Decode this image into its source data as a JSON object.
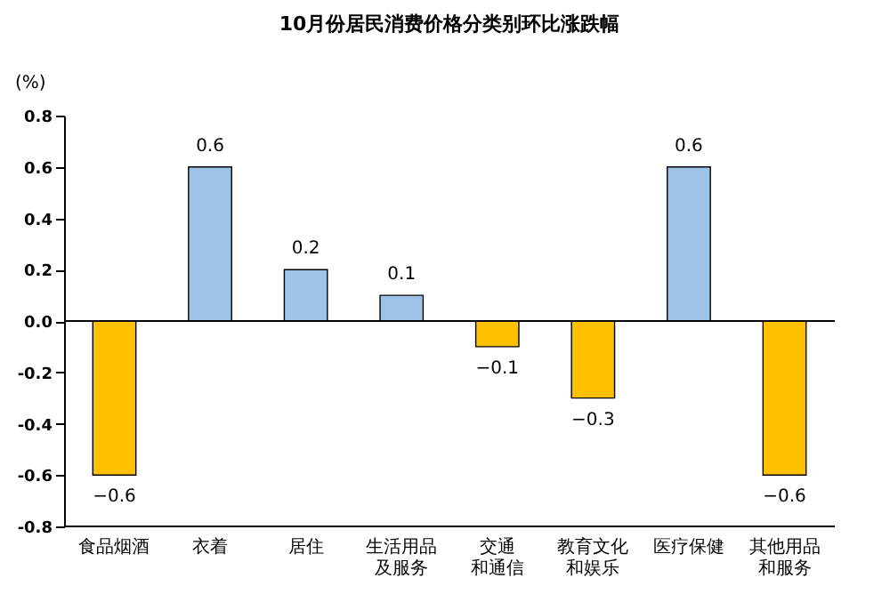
{
  "chart_data": {
    "type": "bar",
    "title": "10月份居民消费价格分类别环比涨跌幅",
    "ylabel": "(%)",
    "categories": [
      "食品烟酒",
      "衣着",
      "居住",
      "生活用品及服务",
      "交通和通信",
      "教育文化和娱乐",
      "医疗保健",
      "其他用品和服务"
    ],
    "values": [
      -0.6,
      0.6,
      0.2,
      0.1,
      -0.1,
      -0.3,
      0.6,
      -0.6
    ],
    "colors": [
      "#ffc000",
      "#9dc3e6",
      "#9dc3e6",
      "#9dc3e6",
      "#ffc000",
      "#ffc000",
      "#9dc3e6",
      "#ffc000"
    ],
    "ylim": [
      -0.8,
      0.8
    ],
    "yticks": [
      -0.8,
      -0.6,
      -0.4,
      -0.2,
      {
        "value": 0,
        "label": "0.0"
      },
      0.2,
      0.4,
      0.6,
      0.8
    ],
    "ref_lines": [
      {
        "axis": "y",
        "value": 0
      }
    ],
    "data_labels": true,
    "grid": false
  }
}
